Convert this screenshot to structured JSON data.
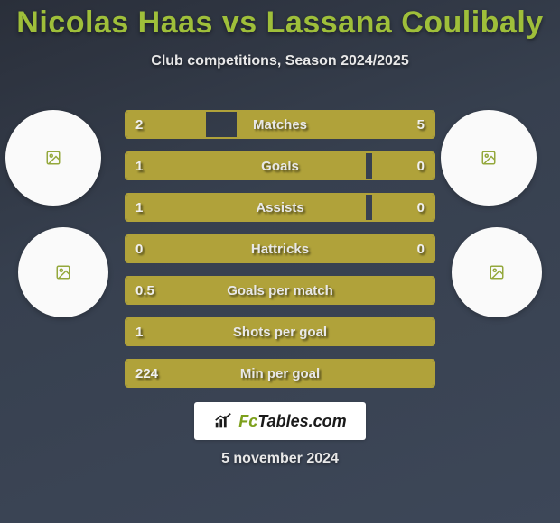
{
  "header": {
    "title": "Nicolas Haas vs Lassana Coulibaly",
    "title_color": "#9fbf3a",
    "title_fontsize": 34,
    "subtitle": "Club competitions, Season 2024/2025",
    "subtitle_color": "#e8e8e8",
    "subtitle_fontsize": 16
  },
  "background_gradient": [
    "#2a2f3a",
    "#37404f",
    "#3d4758"
  ],
  "bar_fill_color": "#b0a23a",
  "bar_border_color": "#b0a23a",
  "value_text_color": "#f0f0f0",
  "circles": {
    "background": "#fafafa",
    "placeholder_icon": "image-placeholder-icon"
  },
  "comparison": {
    "type": "dual-bar",
    "rows": [
      {
        "metric": "Matches",
        "left": "2",
        "right": "5",
        "left_pct": 26,
        "right_pct": 64
      },
      {
        "metric": "Goals",
        "left": "1",
        "right": "0",
        "left_pct": 78,
        "right_pct": 20
      },
      {
        "metric": "Assists",
        "left": "1",
        "right": "0",
        "left_pct": 78,
        "right_pct": 20
      },
      {
        "metric": "Hattricks",
        "left": "0",
        "right": "0",
        "left_pct": 100,
        "right_pct": 0
      },
      {
        "metric": "Goals per match",
        "left": "0.5",
        "right": "",
        "left_pct": 100,
        "right_pct": 0
      },
      {
        "metric": "Shots per goal",
        "left": "1",
        "right": "",
        "left_pct": 100,
        "right_pct": 0
      },
      {
        "metric": "Min per goal",
        "left": "224",
        "right": "",
        "left_pct": 100,
        "right_pct": 0
      }
    ]
  },
  "logo": {
    "text_left": "Fc",
    "text_right": "Tables.com",
    "box_bg": "#ffffff",
    "text_fontsize": 18
  },
  "footer_date": "5 november 2024"
}
